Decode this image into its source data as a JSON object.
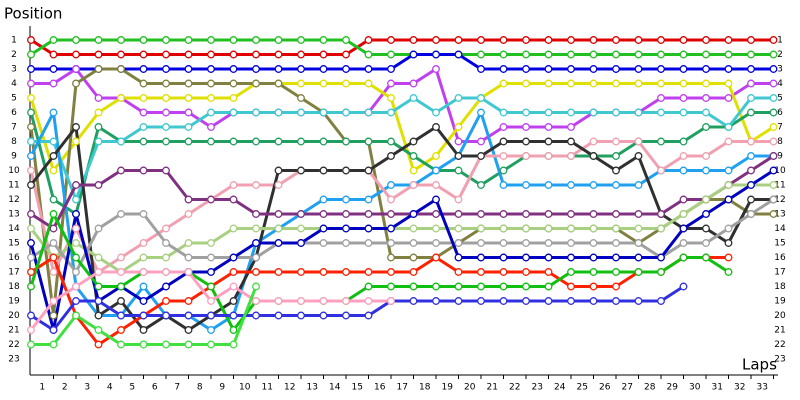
{
  "chart_data": {
    "type": "line",
    "ylabel": "Position",
    "xlabel": "Laps",
    "x": [
      0,
      1,
      2,
      3,
      4,
      5,
      6,
      7,
      8,
      9,
      10,
      11,
      12,
      13,
      14,
      15,
      16,
      17,
      18,
      19,
      20,
      21,
      22,
      23,
      24,
      25,
      26,
      27,
      28,
      29,
      30,
      31,
      32,
      33
    ],
    "xlim": [
      0,
      33
    ],
    "xticks": [
      1,
      2,
      3,
      4,
      5,
      6,
      7,
      8,
      9,
      10,
      11,
      12,
      13,
      14,
      15,
      16,
      17,
      18,
      19,
      20,
      21,
      22,
      23,
      24,
      25,
      26,
      27,
      28,
      29,
      30,
      31,
      32,
      33
    ],
    "ylim": [
      1,
      23
    ],
    "yticks": [
      1,
      2,
      3,
      4,
      5,
      6,
      7,
      8,
      9,
      10,
      11,
      12,
      13,
      14,
      15,
      16,
      17,
      18,
      19,
      20,
      21,
      22,
      23
    ],
    "y_inverted": true,
    "grid": false,
    "series": [
      {
        "color": "#e00000",
        "values": [
          1,
          2,
          2,
          2,
          2,
          2,
          2,
          2,
          2,
          2,
          2,
          2,
          2,
          2,
          2,
          1,
          1,
          1,
          1,
          1,
          1,
          1,
          1,
          1,
          1,
          1,
          1,
          1,
          1,
          1,
          1,
          1,
          1,
          1
        ]
      },
      {
        "color": "#20c020",
        "values": [
          2,
          1,
          1,
          1,
          1,
          1,
          1,
          1,
          1,
          1,
          1,
          1,
          1,
          1,
          1,
          2,
          2,
          2,
          2,
          2,
          2,
          2,
          2,
          2,
          2,
          2,
          2,
          2,
          2,
          2,
          2,
          2,
          2,
          2
        ]
      },
      {
        "color": "#0000e0",
        "values": [
          3,
          3,
          3,
          3,
          3,
          3,
          3,
          3,
          3,
          3,
          3,
          3,
          3,
          3,
          3,
          3,
          3,
          2,
          2,
          2,
          3,
          3,
          3,
          3,
          3,
          3,
          3,
          3,
          3,
          3,
          3,
          3,
          3,
          3
        ]
      },
      {
        "color": "#c040f0",
        "values": [
          4,
          4,
          3,
          5,
          5,
          6,
          6,
          6,
          7,
          6,
          6,
          6,
          6,
          6,
          6,
          6,
          4,
          4,
          3,
          8,
          8,
          7,
          7,
          7,
          7,
          6,
          6,
          6,
          5,
          5,
          5,
          5,
          4,
          4
        ]
      },
      {
        "color": "#e0e000",
        "values": [
          5,
          10,
          8,
          6,
          5,
          5,
          5,
          5,
          5,
          5,
          4,
          4,
          4,
          4,
          4,
          4,
          5,
          10,
          9,
          7,
          5,
          4,
          4,
          4,
          4,
          4,
          4,
          4,
          4,
          4,
          4,
          4,
          8,
          7
        ]
      },
      {
        "color": "#808040",
        "values": [
          7,
          20,
          4,
          3,
          3,
          4,
          4,
          4,
          4,
          4,
          4,
          4,
          5,
          6,
          8,
          8,
          16,
          16,
          16,
          15,
          14,
          14,
          14,
          14,
          14,
          14,
          14,
          15,
          14,
          13,
          12,
          12,
          13,
          13
        ]
      },
      {
        "color": "#20a060",
        "values": [
          6,
          12,
          13,
          7,
          8,
          8,
          8,
          8,
          8,
          8,
          8,
          8,
          8,
          8,
          8,
          8,
          8,
          9,
          10,
          10,
          11,
          10,
          9,
          9,
          9,
          9,
          9,
          8,
          8,
          8,
          7,
          7,
          6,
          6
        ]
      },
      {
        "color": "#40c8d0",
        "values": [
          8,
          8,
          12,
          8,
          8,
          7,
          7,
          7,
          6,
          6,
          6,
          6,
          6,
          6,
          6,
          6,
          6,
          5,
          6,
          5,
          5,
          6,
          6,
          6,
          6,
          6,
          6,
          6,
          6,
          6,
          6,
          7,
          5,
          5
        ]
      },
      {
        "color": "#20a0f0",
        "values": [
          9,
          6,
          18,
          20,
          20,
          18,
          20,
          20,
          21,
          20,
          15,
          14,
          13,
          12,
          12,
          12,
          11,
          11,
          10,
          9,
          6,
          11,
          11,
          11,
          11,
          11,
          11,
          11,
          10,
          10,
          10,
          10,
          9,
          9
        ]
      },
      {
        "color": "#f0a0b0",
        "values": [
          10,
          17,
          14,
          17,
          16,
          15,
          14,
          13,
          12,
          11,
          11,
          11,
          10,
          10,
          10,
          10,
          12,
          11,
          11,
          12,
          9,
          9,
          9,
          9,
          9,
          8,
          8,
          8,
          10,
          9,
          9,
          8,
          8,
          8
        ]
      },
      {
        "color": "#303030",
        "values": [
          11,
          9,
          7,
          20,
          19,
          21,
          20,
          21,
          20,
          19,
          16,
          10,
          10,
          10,
          10,
          10,
          9,
          8,
          7,
          9,
          9,
          8,
          8,
          8,
          8,
          9,
          10,
          9,
          13,
          14,
          14,
          15,
          12,
          12
        ]
      },
      {
        "color": "#803080",
        "values": [
          13,
          14,
          11,
          11,
          10,
          10,
          10,
          12,
          12,
          12,
          13,
          13,
          13,
          13,
          13,
          13,
          13,
          13,
          13,
          13,
          13,
          13,
          13,
          13,
          13,
          13,
          13,
          13,
          13,
          12,
          12,
          11,
          10,
          9
        ]
      },
      {
        "color": "#a8d080",
        "values": [
          14,
          16,
          15,
          16,
          17,
          16,
          16,
          15,
          15,
          14,
          14,
          14,
          14,
          14,
          14,
          14,
          14,
          14,
          14,
          14,
          14,
          14,
          14,
          14,
          14,
          14,
          14,
          14,
          14,
          13,
          12,
          11,
          11,
          11
        ]
      },
      {
        "color": "#a0a0a0",
        "values": [
          16,
          15,
          17,
          14,
          13,
          13,
          15,
          16,
          16,
          16,
          16,
          15,
          15,
          15,
          15,
          15,
          15,
          15,
          15,
          15,
          15,
          15,
          15,
          15,
          15,
          15,
          15,
          15,
          16,
          15,
          15,
          14,
          13,
          12
        ]
      },
      {
        "color": "#0000c0",
        "values": [
          15,
          21,
          13,
          19,
          18,
          19,
          18,
          17,
          17,
          16,
          15,
          15,
          15,
          14,
          14,
          14,
          14,
          13,
          12,
          16,
          16,
          16,
          16,
          16,
          16,
          16,
          16,
          16,
          16,
          14,
          13,
          12,
          11,
          10
        ]
      },
      {
        "color": "#ff2000",
        "values": [
          17,
          16,
          20,
          22,
          21,
          20,
          19,
          19,
          18,
          17,
          17,
          17,
          17,
          17,
          17,
          17,
          17,
          17,
          16,
          17,
          17,
          17,
          17,
          17,
          18,
          18,
          18,
          17,
          17,
          16,
          16,
          16,
          null,
          null
        ]
      },
      {
        "color": "#10c010",
        "values": [
          18,
          13,
          16,
          18,
          18,
          17,
          17,
          17,
          18,
          21,
          19,
          19,
          19,
          19,
          19,
          18,
          18,
          18,
          18,
          18,
          18,
          18,
          18,
          18,
          17,
          17,
          17,
          17,
          17,
          16,
          16,
          17,
          null,
          null
        ]
      },
      {
        "color": "#3030e0",
        "values": [
          20,
          21,
          19,
          19,
          20,
          20,
          20,
          20,
          20,
          20,
          20,
          20,
          20,
          20,
          20,
          20,
          19,
          19,
          19,
          19,
          19,
          19,
          19,
          19,
          19,
          19,
          19,
          19,
          19,
          18,
          null,
          null,
          null,
          null
        ]
      },
      {
        "color": "#ffa0c0",
        "values": [
          21,
          19,
          18,
          17,
          17,
          17,
          17,
          17,
          19,
          18,
          19,
          19,
          19,
          19,
          19,
          19,
          19,
          null,
          null,
          null,
          null,
          null,
          null,
          null,
          null,
          null,
          null,
          null,
          null,
          null,
          null,
          null,
          null,
          null
        ]
      },
      {
        "color": "#40e040",
        "values": [
          22,
          22,
          20,
          21,
          22,
          22,
          22,
          22,
          22,
          22,
          18,
          null,
          null,
          null,
          null,
          null,
          null,
          null,
          null,
          null,
          null,
          null,
          null,
          null,
          null,
          null,
          null,
          null,
          null,
          null,
          null,
          null,
          null,
          null
        ]
      }
    ]
  }
}
